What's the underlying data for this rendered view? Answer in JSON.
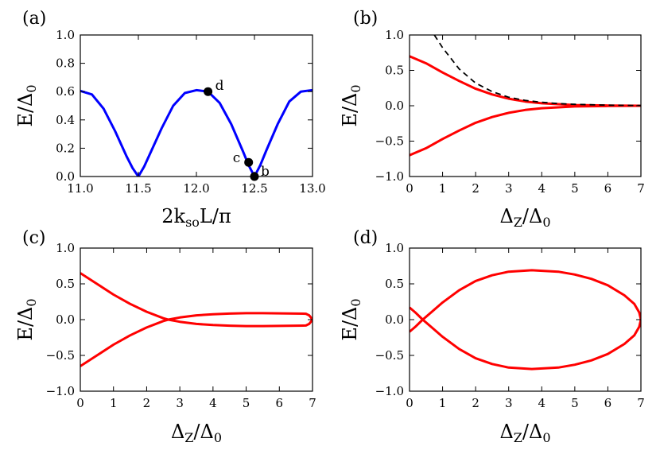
{
  "chart_data": [
    {
      "panel": "(a)",
      "type": "line",
      "xlabel": "2k_so L/π",
      "ylabel": "E/Δ0",
      "xlim": [
        11.0,
        13.0
      ],
      "ylim": [
        0.0,
        1.0
      ],
      "xticks": [
        "11.0",
        "11.5",
        "12.0",
        "12.5",
        "13.0"
      ],
      "yticks": [
        "0.0",
        "0.2",
        "0.4",
        "0.6",
        "0.8",
        "1.0"
      ],
      "series": [
        {
          "color": "#0000ff",
          "x": [
            11.0,
            11.1,
            11.2,
            11.3,
            11.4,
            11.45,
            11.5,
            11.55,
            11.6,
            11.7,
            11.8,
            11.9,
            12.0,
            12.1,
            12.2,
            12.3,
            12.4,
            12.45,
            12.5,
            12.55,
            12.6,
            12.7,
            12.8,
            12.9,
            13.0
          ],
          "y": [
            0.605,
            0.58,
            0.48,
            0.32,
            0.14,
            0.06,
            0.0,
            0.07,
            0.16,
            0.34,
            0.5,
            0.59,
            0.61,
            0.6,
            0.52,
            0.37,
            0.18,
            0.08,
            0.0,
            0.08,
            0.18,
            0.37,
            0.53,
            0.6,
            0.61
          ]
        }
      ],
      "points": [
        {
          "label": "d",
          "x": 12.1,
          "y": 0.6
        },
        {
          "label": "c",
          "x": 12.45,
          "y": 0.1
        },
        {
          "label": "b",
          "x": 12.5,
          "y": 0.0
        }
      ]
    },
    {
      "panel": "(b)",
      "type": "line",
      "xlabel": "Δ_Z/Δ0",
      "ylabel": "E/Δ0",
      "xlim": [
        0,
        7
      ],
      "ylim": [
        -1.0,
        1.0
      ],
      "xticks": [
        "0",
        "1",
        "2",
        "3",
        "4",
        "5",
        "6",
        "7"
      ],
      "yticks": [
        "−1.0",
        "−0.5",
        "0.0",
        "0.5",
        "1.0"
      ],
      "series": [
        {
          "color": "#ff0000",
          "style": "solid",
          "x": [
            0,
            0.5,
            1,
            1.5,
            2,
            2.5,
            3,
            3.5,
            4,
            5,
            6,
            7
          ],
          "y": [
            0.7,
            0.6,
            0.47,
            0.35,
            0.24,
            0.16,
            0.1,
            0.06,
            0.035,
            0.01,
            0.003,
            0.0
          ]
        },
        {
          "color": "#ff0000",
          "style": "solid",
          "x": [
            0,
            0.5,
            1,
            1.5,
            2,
            2.5,
            3,
            3.5,
            4,
            5,
            6,
            7
          ],
          "y": [
            -0.7,
            -0.6,
            -0.47,
            -0.35,
            -0.24,
            -0.16,
            -0.1,
            -0.06,
            -0.035,
            -0.01,
            -0.003,
            0.0
          ]
        },
        {
          "color": "#000000",
          "style": "dashed",
          "x": [
            0.75,
            1,
            1.5,
            2,
            2.5,
            3,
            3.5,
            4,
            4.5,
            5,
            6,
            7
          ],
          "y": [
            1.0,
            0.82,
            0.52,
            0.32,
            0.2,
            0.12,
            0.075,
            0.05,
            0.03,
            0.02,
            0.008,
            0.003
          ]
        }
      ]
    },
    {
      "panel": "(c)",
      "type": "line",
      "xlabel": "Δ_Z/Δ0",
      "ylabel": "E/Δ0",
      "xlim": [
        0,
        7
      ],
      "ylim": [
        -1.0,
        1.0
      ],
      "xticks": [
        "0",
        "1",
        "2",
        "3",
        "4",
        "5",
        "6",
        "7"
      ],
      "yticks": [
        "−1.0",
        "−0.5",
        "0.0",
        "0.5",
        "1.0"
      ],
      "series": [
        {
          "color": "#ff0000",
          "style": "solid",
          "x": [
            0,
            0.5,
            1,
            1.5,
            2,
            2.5,
            2.65,
            3,
            3.5,
            4,
            4.5,
            5,
            5.5,
            6,
            6.5,
            6.8,
            6.9,
            7.0
          ],
          "y": [
            0.65,
            0.5,
            0.35,
            0.22,
            0.11,
            0.02,
            0.0,
            -0.03,
            -0.06,
            -0.075,
            -0.085,
            -0.09,
            -0.09,
            -0.088,
            -0.085,
            -0.082,
            -0.06,
            0.0
          ]
        },
        {
          "color": "#ff0000",
          "style": "solid",
          "x": [
            0,
            0.5,
            1,
            1.5,
            2,
            2.5,
            2.65,
            3,
            3.5,
            4,
            4.5,
            5,
            5.5,
            6,
            6.5,
            6.8,
            6.9,
            7.0
          ],
          "y": [
            -0.65,
            -0.5,
            -0.35,
            -0.22,
            -0.11,
            -0.02,
            0.0,
            0.03,
            0.06,
            0.075,
            0.085,
            0.09,
            0.09,
            0.088,
            0.085,
            0.082,
            0.06,
            0.0
          ]
        }
      ]
    },
    {
      "panel": "(d)",
      "type": "line",
      "xlabel": "Δ_Z/Δ0",
      "ylabel": "E/Δ0",
      "xlim": [
        0,
        7
      ],
      "ylim": [
        -1.0,
        1.0
      ],
      "xticks": [
        "0",
        "1",
        "2",
        "3",
        "4",
        "5",
        "6",
        "7"
      ],
      "yticks": [
        "−1.0",
        "−0.5",
        "0.0",
        "0.5",
        "1.0"
      ],
      "series": [
        {
          "color": "#ff0000",
          "style": "solid",
          "x": [
            0,
            0.2,
            0.4,
            0.7,
            1,
            1.5,
            2,
            2.5,
            3,
            3.7,
            4.5,
            5,
            5.5,
            6,
            6.5,
            6.8,
            6.95,
            7.0
          ],
          "y": [
            0.17,
            0.09,
            0.0,
            -0.12,
            -0.24,
            -0.41,
            -0.54,
            -0.62,
            -0.67,
            -0.69,
            -0.67,
            -0.63,
            -0.57,
            -0.48,
            -0.34,
            -0.22,
            -0.1,
            0.0
          ]
        },
        {
          "color": "#ff0000",
          "style": "solid",
          "x": [
            0,
            0.2,
            0.4,
            0.7,
            1,
            1.5,
            2,
            2.5,
            3,
            3.7,
            4.5,
            5,
            5.5,
            6,
            6.5,
            6.8,
            6.95,
            7.0
          ],
          "y": [
            -0.17,
            -0.09,
            0.0,
            0.12,
            0.24,
            0.41,
            0.54,
            0.62,
            0.67,
            0.69,
            0.67,
            0.63,
            0.57,
            0.48,
            0.34,
            0.22,
            0.1,
            0.0
          ]
        }
      ]
    }
  ]
}
